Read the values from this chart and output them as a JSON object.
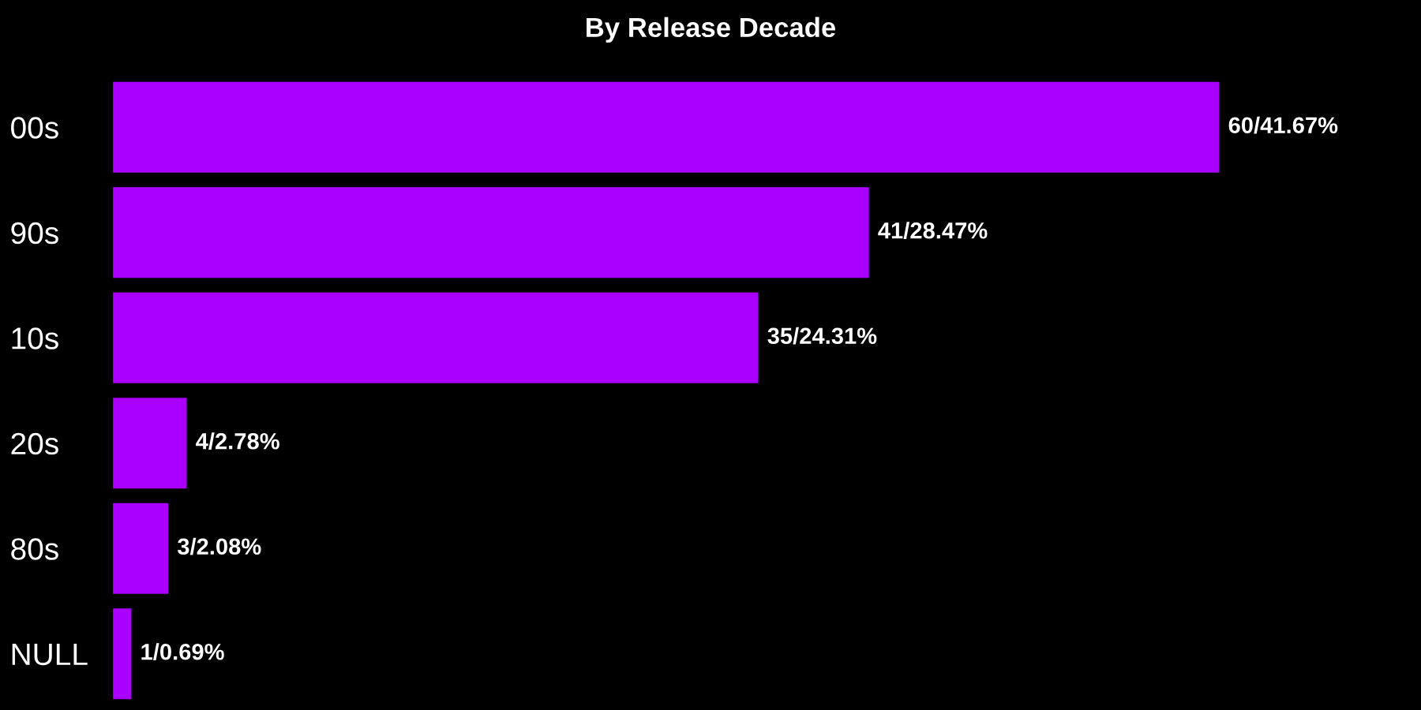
{
  "chart_data": {
    "type": "bar",
    "orientation": "horizontal",
    "title": "By Release Decade",
    "categories": [
      "00s",
      "90s",
      "10s",
      "20s",
      "80s",
      "NULL"
    ],
    "values": [
      60,
      41,
      35,
      4,
      3,
      1
    ],
    "value_labels": [
      "60/41.67%",
      "41/28.47%",
      "35/24.31%",
      "4/2.78%",
      "3/2.08%",
      "1/0.69%"
    ],
    "color": "#aa00ff",
    "grid": false,
    "legend": false
  }
}
